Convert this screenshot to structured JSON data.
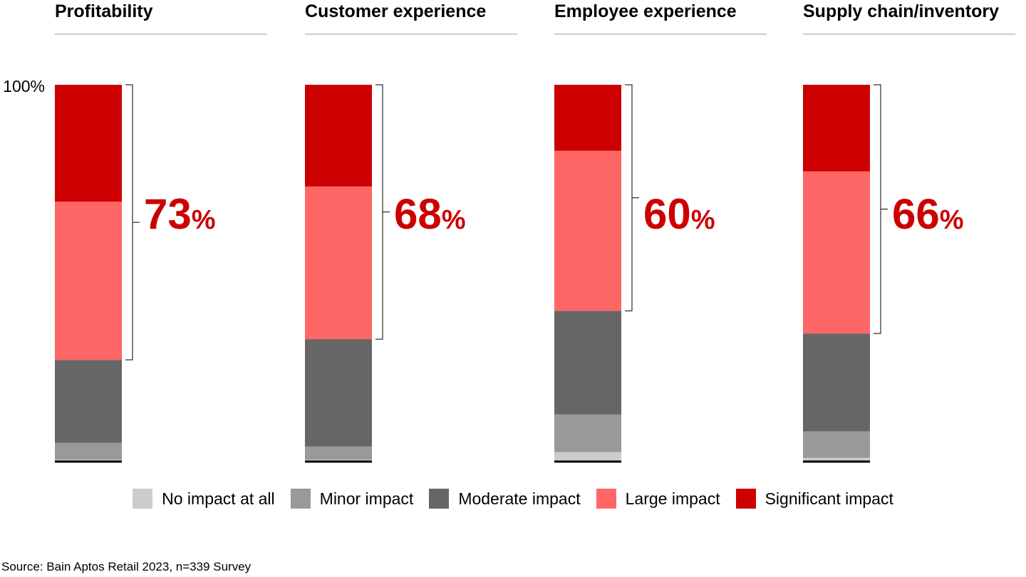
{
  "chart_data": {
    "type": "bar",
    "stacked": true,
    "orientation": "vertical",
    "y_tick_label": "100%",
    "categories": [
      "Profitability",
      "Customer experience",
      "Employee experience",
      "Supply chain/inventory"
    ],
    "series": [
      {
        "name": "No impact at all",
        "color": "#cccccc",
        "values": [
          0.5,
          0.5,
          2.5,
          1
        ]
      },
      {
        "name": "Minor impact",
        "color": "#999999",
        "values": [
          4.5,
          3.5,
          10,
          7
        ]
      },
      {
        "name": "Moderate impact",
        "color": "#666666",
        "values": [
          22,
          28.5,
          27.5,
          26
        ]
      },
      {
        "name": "Large impact",
        "color": "#ff6666",
        "values": [
          42,
          40.5,
          42.5,
          43
        ]
      },
      {
        "name": "Significant impact",
        "color": "#cc0000",
        "values": [
          31,
          27,
          17.5,
          23
        ]
      }
    ],
    "bracket_totals": [
      {
        "number": "73",
        "unit": "%"
      },
      {
        "number": "68",
        "unit": "%"
      },
      {
        "number": "60",
        "unit": "%"
      },
      {
        "number": "66",
        "unit": "%"
      }
    ],
    "ylim": [
      0,
      100
    ]
  },
  "source": "Source: Bain Aptos Retail 2023, n=339 Survey"
}
